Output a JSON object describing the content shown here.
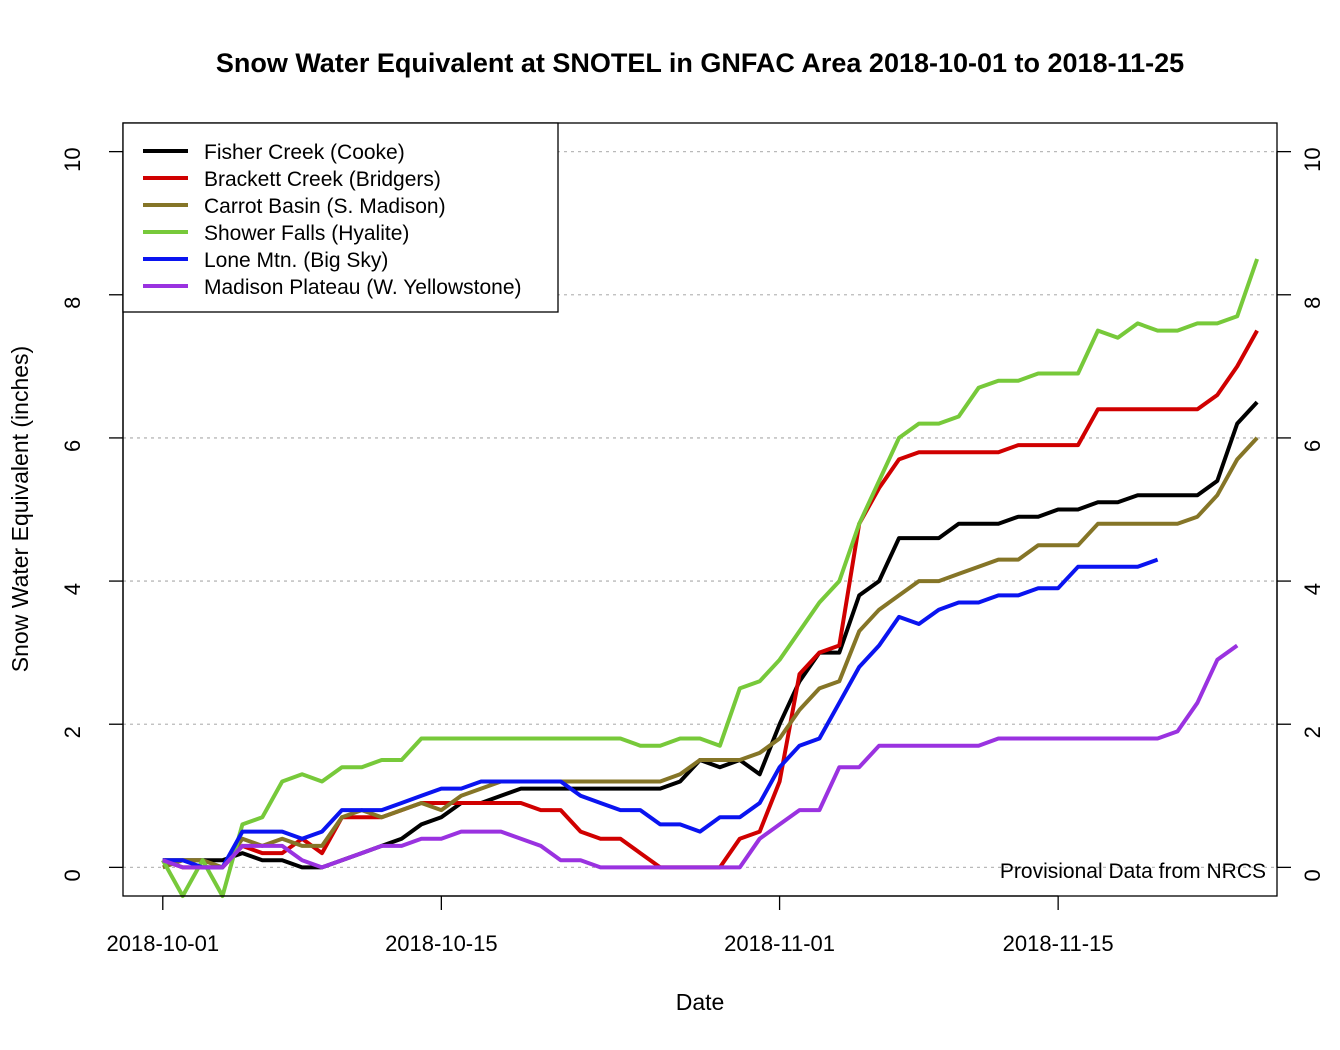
{
  "chart_data": {
    "type": "line",
    "title": "Snow Water Equivalent at SNOTEL in GNFAC Area 2018-10-01 to 2018-11-25",
    "xlabel": "Date",
    "ylabel": "Snow Water Equivalent (inches)",
    "x_start": "2018-10-01",
    "x_end": "2018-11-25",
    "xlim": [
      "2018-09-29",
      "2018-11-26"
    ],
    "ylim": [
      -0.4,
      10.4
    ],
    "x_ticks": [
      "2018-10-01",
      "2018-10-15",
      "2018-11-01",
      "2018-11-15"
    ],
    "y_ticks": [
      0,
      2,
      4,
      6,
      8,
      10
    ],
    "grid": "horizontal dotted",
    "legend_position": "top-left",
    "annotation": "Provisional Data from NRCS",
    "series": [
      {
        "name": "Fisher Creek (Cooke)",
        "color": "#000000",
        "values": [
          0.1,
          0.1,
          0.1,
          0.1,
          0.2,
          0.1,
          0.1,
          0.0,
          0.0,
          0.1,
          0.2,
          0.3,
          0.4,
          0.6,
          0.7,
          0.9,
          0.9,
          1.0,
          1.1,
          1.1,
          1.1,
          1.1,
          1.1,
          1.1,
          1.1,
          1.1,
          1.2,
          1.5,
          1.4,
          1.5,
          1.3,
          2.0,
          2.6,
          3.0,
          3.0,
          3.8,
          4.0,
          4.6,
          4.6,
          4.6,
          4.8,
          4.8,
          4.8,
          4.9,
          4.9,
          5.0,
          5.0,
          5.1,
          5.1,
          5.2,
          5.2,
          5.2,
          5.2,
          5.4,
          6.2,
          6.5
        ]
      },
      {
        "name": "Brackett Creek (Bridgers)",
        "color": "#d00000",
        "values": [
          0.1,
          0.0,
          0.0,
          0.0,
          0.3,
          0.2,
          0.2,
          0.4,
          0.2,
          0.7,
          0.7,
          0.7,
          0.8,
          0.9,
          0.9,
          0.9,
          0.9,
          0.9,
          0.9,
          0.8,
          0.8,
          0.5,
          0.4,
          0.4,
          0.2,
          0.0,
          0.0,
          0.0,
          0.0,
          0.4,
          0.5,
          1.2,
          2.7,
          3.0,
          3.1,
          4.8,
          5.3,
          5.7,
          5.8,
          5.8,
          5.8,
          5.8,
          5.8,
          5.9,
          5.9,
          5.9,
          5.9,
          6.4,
          6.4,
          6.4,
          6.4,
          6.4,
          6.4,
          6.6,
          7.0,
          7.5
        ]
      },
      {
        "name": "Carrot Basin (S. Madison)",
        "color": "#857527",
        "values": [
          0.0,
          0.1,
          0.1,
          0.0,
          0.4,
          0.3,
          0.4,
          0.3,
          0.3,
          0.7,
          0.8,
          0.7,
          0.8,
          0.9,
          0.8,
          1.0,
          1.1,
          1.2,
          1.2,
          1.2,
          1.2,
          1.2,
          1.2,
          1.2,
          1.2,
          1.2,
          1.3,
          1.5,
          1.5,
          1.5,
          1.6,
          1.8,
          2.2,
          2.5,
          2.6,
          3.3,
          3.6,
          3.8,
          4.0,
          4.0,
          4.1,
          4.2,
          4.3,
          4.3,
          4.5,
          4.5,
          4.5,
          4.8,
          4.8,
          4.8,
          4.8,
          4.8,
          4.9,
          5.2,
          5.7,
          6.0
        ]
      },
      {
        "name": "Shower Falls (Hyalite)",
        "color": "#77c93a",
        "values": [
          0.1,
          -0.4,
          0.1,
          -0.4,
          0.6,
          0.7,
          1.2,
          1.3,
          1.2,
          1.4,
          1.4,
          1.5,
          1.5,
          1.8,
          1.8,
          1.8,
          1.8,
          1.8,
          1.8,
          1.8,
          1.8,
          1.8,
          1.8,
          1.8,
          1.7,
          1.7,
          1.8,
          1.8,
          1.7,
          2.5,
          2.6,
          2.9,
          3.3,
          3.7,
          4.0,
          4.8,
          5.4,
          6.0,
          6.2,
          6.2,
          6.3,
          6.7,
          6.8,
          6.8,
          6.9,
          6.9,
          6.9,
          7.5,
          7.4,
          7.6,
          7.5,
          7.5,
          7.6,
          7.6,
          7.7,
          8.5
        ]
      },
      {
        "name": "Lone Mtn. (Big Sky)",
        "color": "#0a14f0",
        "values": [
          0.1,
          0.1,
          0.0,
          0.0,
          0.5,
          0.5,
          0.5,
          0.4,
          0.5,
          0.8,
          0.8,
          0.8,
          0.9,
          1.0,
          1.1,
          1.1,
          1.2,
          1.2,
          1.2,
          1.2,
          1.2,
          1.0,
          0.9,
          0.8,
          0.8,
          0.6,
          0.6,
          0.5,
          0.7,
          0.7,
          0.9,
          1.4,
          1.7,
          1.8,
          2.3,
          2.8,
          3.1,
          3.5,
          3.4,
          3.6,
          3.7,
          3.7,
          3.8,
          3.8,
          3.9,
          3.9,
          4.2,
          4.2,
          4.2,
          4.2,
          4.3,
          null,
          null,
          null,
          null,
          null
        ]
      },
      {
        "name": "Madison Plateau (W. Yellowstone)",
        "color": "#9a32e0",
        "values": [
          0.1,
          0.0,
          0.0,
          0.0,
          0.3,
          0.3,
          0.3,
          0.1,
          0.0,
          0.1,
          0.2,
          0.3,
          0.3,
          0.4,
          0.4,
          0.5,
          0.5,
          0.5,
          0.4,
          0.3,
          0.1,
          0.1,
          0.0,
          0.0,
          0.0,
          0.0,
          0.0,
          0.0,
          0.0,
          0.0,
          0.4,
          0.6,
          0.8,
          0.8,
          1.4,
          1.4,
          1.7,
          1.7,
          1.7,
          1.7,
          1.7,
          1.7,
          1.8,
          1.8,
          1.8,
          1.8,
          1.8,
          1.8,
          1.8,
          1.8,
          1.8,
          1.9,
          2.3,
          2.9,
          3.1,
          null
        ]
      }
    ]
  }
}
